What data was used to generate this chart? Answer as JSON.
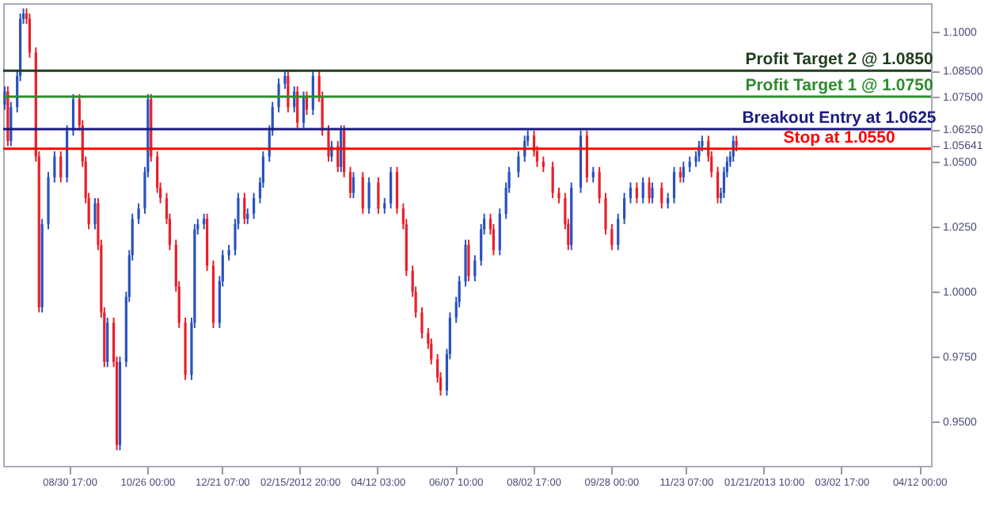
{
  "chart_data": {
    "type": "candlestick",
    "ylim": [
      0.933,
      1.111
    ],
    "categories": [
      null,
      null,
      null,
      null,
      null,
      null,
      null,
      null,
      null,
      null,
      null,
      null,
      null,
      null,
      null,
      null,
      null,
      null,
      null,
      null,
      null,
      "08/30 17:00",
      null,
      null,
      null,
      null,
      null,
      null,
      null,
      null,
      null,
      null,
      null,
      null,
      null,
      null,
      null,
      null,
      null,
      null,
      null,
      null,
      null,
      null,
      null,
      null,
      "10/26 00:00",
      null,
      null,
      null,
      null,
      null,
      null,
      null,
      null,
      null,
      null,
      null,
      null,
      null,
      null,
      null,
      null,
      null,
      null,
      null,
      null,
      null,
      null,
      null,
      "12/21 07:00",
      null,
      null,
      null,
      null,
      null,
      null,
      null,
      null,
      null,
      null,
      null,
      null,
      null,
      null,
      null,
      null,
      null,
      null,
      null,
      null,
      null,
      null,
      null,
      null,
      "02/15/2012 20:00",
      null,
      null,
      null,
      null,
      null,
      null,
      null,
      null,
      null,
      null,
      null,
      null,
      null,
      null,
      null,
      null,
      null,
      null,
      null,
      null,
      null,
      null,
      null,
      null,
      "04/12 03:00",
      null,
      null,
      null,
      null,
      null,
      null,
      null,
      null,
      null,
      null,
      null,
      null,
      null,
      null,
      null,
      null,
      null,
      null,
      null,
      null,
      null,
      null,
      null,
      null,
      "06/07 10:00",
      null,
      null,
      null,
      null,
      null,
      null,
      null,
      null,
      null,
      null,
      null,
      null,
      null,
      null,
      null,
      null,
      null,
      null,
      null,
      null,
      null,
      null,
      null,
      null,
      "08/02 17:00",
      null,
      null,
      null,
      null,
      null,
      null,
      null,
      null,
      null,
      null,
      null,
      null,
      null,
      null,
      null,
      null,
      null,
      null,
      null,
      null,
      null,
      null,
      null,
      null,
      "09/28 00:00",
      null,
      null,
      null,
      null,
      null,
      null,
      null,
      null,
      null,
      null,
      null,
      null,
      null,
      null,
      null,
      null,
      null,
      null,
      null,
      null,
      null,
      null,
      null,
      "11/23 07:00",
      null,
      null,
      null,
      null,
      null,
      null,
      null,
      null,
      null,
      null,
      null,
      null,
      null,
      null,
      null,
      null,
      null,
      null,
      null,
      null,
      null,
      null,
      null,
      null,
      "01/21/2013 10:00",
      null,
      null,
      null,
      null,
      null,
      null,
      null,
      null,
      null,
      null,
      null,
      null,
      null,
      null,
      null,
      null,
      null,
      null,
      null,
      null,
      null,
      null,
      null,
      null,
      "03/02 17:00",
      null,
      null,
      null,
      null,
      null,
      null,
      null,
      null,
      null,
      null,
      null,
      null,
      null,
      null,
      null,
      null,
      null,
      null,
      null,
      null,
      null,
      null,
      null,
      null,
      "04/12 00:00",
      null,
      null,
      null
    ],
    "yticks": [
      {
        "value": 0.95,
        "label": "0.9500"
      },
      {
        "value": 0.975,
        "label": "0.9750"
      },
      {
        "value": 1.0,
        "label": "1.0000"
      },
      {
        "value": 1.025,
        "label": "1.0250"
      },
      {
        "value": 1.05,
        "label": "1.0500"
      },
      {
        "value": 1.05641,
        "label": "1.05641"
      },
      {
        "value": 1.0625,
        "label": "1.06250"
      },
      {
        "value": 1.075,
        "label": "1.07500"
      },
      {
        "value": 1.085,
        "label": "1.08500"
      },
      {
        "value": 1.1,
        "label": "1.1000"
      }
    ],
    "grid": false,
    "series": [
      {
        "color": "#2a52be",
        "ohlc": [
          [
            1.072,
            1.079,
            1.07,
            1.077
          ],
          null,
          [
            1.058,
            1.073,
            1.056,
            1.071
          ],
          null,
          [
            1.071,
            1.085,
            1.069,
            1.083
          ],
          [
            1.083,
            1.107,
            1.081,
            1.105
          ],
          [
            1.105,
            1.109,
            1.103,
            1.107
          ],
          null,
          null,
          null,
          null,
          null,
          [
            0.994,
            1.028,
            0.992,
            1.026
          ],
          null,
          [
            1.026,
            1.046,
            1.024,
            1.044
          ],
          null,
          [
            1.044,
            1.054,
            1.042,
            1.052
          ],
          null,
          null,
          null,
          [
            1.044,
            1.064,
            1.042,
            1.062
          ],
          null,
          [
            1.062,
            1.076,
            1.06,
            1.074
          ],
          null,
          null,
          null,
          null,
          null,
          null,
          [
            1.026,
            1.036,
            1.024,
            1.034
          ],
          null,
          null,
          null,
          [
            0.973,
            0.99,
            0.971,
            0.988
          ],
          null,
          null,
          null,
          [
            0.941,
            0.975,
            0.939,
            0.973
          ],
          null,
          [
            0.973,
            1.0,
            0.971,
            0.998
          ],
          [
            0.998,
            1.016,
            0.996,
            1.014
          ],
          [
            1.014,
            1.03,
            1.012,
            1.028
          ],
          null,
          [
            1.028,
            1.034,
            1.026,
            1.032
          ],
          null,
          [
            1.032,
            1.048,
            1.03,
            1.046
          ],
          [
            1.046,
            1.076,
            1.044,
            1.074
          ],
          null,
          null,
          null,
          null,
          null,
          null,
          null,
          null,
          null,
          null,
          null,
          null,
          null,
          [
            0.968,
            0.99,
            0.966,
            0.988
          ],
          [
            0.988,
            1.026,
            0.986,
            1.024
          ],
          [
            1.024,
            1.028,
            1.022,
            1.026
          ],
          null,
          [
            1.026,
            1.03,
            1.024,
            1.028
          ],
          null,
          null,
          null,
          null,
          [
            0.988,
            1.006,
            0.986,
            1.004
          ],
          [
            1.004,
            1.016,
            1.002,
            1.014
          ],
          null,
          [
            1.014,
            1.018,
            1.012,
            1.016
          ],
          null,
          [
            1.016,
            1.028,
            1.014,
            1.026
          ],
          [
            1.026,
            1.038,
            1.024,
            1.036
          ],
          null,
          null,
          [
            1.028,
            1.032,
            1.026,
            1.03
          ],
          null,
          [
            1.03,
            1.038,
            1.028,
            1.036
          ],
          null,
          [
            1.036,
            1.044,
            1.034,
            1.042
          ],
          [
            1.042,
            1.054,
            1.04,
            1.052
          ],
          null,
          [
            1.052,
            1.064,
            1.05,
            1.062
          ],
          [
            1.062,
            1.073,
            1.06,
            1.071
          ],
          null,
          [
            1.071,
            1.082,
            1.069,
            1.08
          ],
          null,
          [
            1.08,
            1.085,
            1.078,
            1.083
          ],
          null,
          null,
          [
            1.071,
            1.079,
            1.069,
            1.077
          ],
          null,
          null,
          [
            1.065,
            1.077,
            1.063,
            1.075
          ],
          null,
          null,
          [
            1.07,
            1.085,
            1.068,
            1.083
          ],
          null,
          null,
          null,
          null,
          null,
          [
            1.052,
            1.058,
            1.05,
            1.056
          ],
          null,
          null,
          [
            1.048,
            1.064,
            1.046,
            1.062
          ],
          null,
          null,
          null,
          [
            1.038,
            1.046,
            1.036,
            1.044
          ],
          null,
          null,
          null,
          null,
          [
            1.032,
            1.044,
            1.03,
            1.042
          ],
          null,
          null,
          null,
          null,
          [
            1.032,
            1.036,
            1.03,
            1.034
          ],
          null,
          [
            1.034,
            1.048,
            1.032,
            1.046
          ],
          null,
          null,
          null,
          null,
          null,
          null,
          null,
          null,
          null,
          null,
          null,
          null,
          null,
          null,
          null,
          null,
          null,
          [
            0.962,
            0.978,
            0.96,
            0.976
          ],
          [
            0.976,
            0.992,
            0.974,
            0.99
          ],
          null,
          [
            0.99,
            0.998,
            0.988,
            0.996
          ],
          [
            0.996,
            1.006,
            0.994,
            1.004
          ],
          null,
          [
            1.004,
            1.02,
            1.002,
            1.018
          ],
          null,
          null,
          [
            1.006,
            1.014,
            1.004,
            1.012
          ],
          null,
          [
            1.012,
            1.026,
            1.01,
            1.024
          ],
          [
            1.024,
            1.03,
            1.022,
            1.028
          ],
          null,
          null,
          null,
          null,
          [
            1.016,
            1.032,
            1.014,
            1.03
          ],
          null,
          [
            1.03,
            1.042,
            1.028,
            1.04
          ],
          [
            1.04,
            1.048,
            1.038,
            1.046
          ],
          null,
          null,
          [
            1.046,
            1.054,
            1.044,
            1.052
          ],
          null,
          [
            1.052,
            1.06,
            1.05,
            1.058
          ],
          [
            1.058,
            1.062,
            1.056,
            1.06
          ],
          null,
          null,
          null,
          null,
          null,
          null,
          null,
          null,
          null,
          null,
          null,
          null,
          null,
          [
            1.018,
            1.042,
            1.016,
            1.04
          ],
          null,
          null,
          [
            1.04,
            1.062,
            1.038,
            1.06
          ],
          null,
          null,
          null,
          [
            1.044,
            1.048,
            1.042,
            1.046
          ],
          null,
          null,
          null,
          null,
          null,
          null,
          null,
          [
            1.018,
            1.03,
            1.016,
            1.028
          ],
          null,
          [
            1.028,
            1.038,
            1.026,
            1.036
          ],
          null,
          [
            1.036,
            1.042,
            1.034,
            1.04
          ],
          null,
          null,
          null,
          [
            1.036,
            1.044,
            1.034,
            1.042
          ],
          null,
          null,
          [
            1.036,
            1.042,
            1.034,
            1.04
          ],
          null,
          null,
          null,
          null,
          [
            1.034,
            1.038,
            1.032,
            1.036
          ],
          null,
          [
            1.036,
            1.048,
            1.034,
            1.046
          ],
          null,
          null,
          [
            1.044,
            1.05,
            1.042,
            1.048
          ],
          null,
          [
            1.048,
            1.052,
            1.046,
            1.05
          ],
          null,
          [
            1.05,
            1.054,
            1.048,
            1.052
          ],
          [
            1.052,
            1.058,
            1.05,
            1.056
          ],
          [
            1.056,
            1.06,
            1.054,
            1.058
          ],
          null,
          null,
          null,
          null,
          null,
          [
            1.036,
            1.04,
            1.034,
            1.038
          ],
          [
            1.038,
            1.048,
            1.036,
            1.046
          ],
          [
            1.046,
            1.052,
            1.044,
            1.05
          ],
          [
            1.05,
            1.054,
            1.048,
            1.052
          ],
          [
            1.052,
            1.06,
            1.05,
            1.058
          ],
          null,
          null,
          null,
          null,
          null,
          null,
          null,
          null,
          null,
          null,
          null,
          null,
          null,
          null,
          null,
          null,
          null,
          null,
          null,
          null,
          null,
          null,
          null,
          null,
          null,
          null,
          null,
          null,
          null,
          null,
          null,
          null,
          null,
          null,
          null,
          null,
          null,
          null,
          null,
          null,
          null,
          null,
          null,
          null,
          null,
          null,
          null,
          null,
          null,
          null,
          null,
          null,
          null,
          null,
          null,
          null,
          null,
          null,
          null,
          null,
          null,
          null,
          null
        ]
      },
      {
        "color": "#e8202a",
        "ohlc": [
          null,
          [
            1.077,
            1.079,
            1.056,
            1.058
          ],
          null,
          null,
          null,
          null,
          null,
          [
            1.107,
            1.109,
            1.103,
            1.105
          ],
          [
            1.105,
            1.107,
            1.09,
            1.092
          ],
          null,
          [
            1.092,
            1.094,
            1.05,
            1.052
          ],
          [
            1.052,
            1.054,
            0.992,
            0.994
          ],
          null,
          null,
          null,
          null,
          null,
          null,
          [
            1.052,
            1.054,
            1.042,
            1.044
          ],
          null,
          null,
          null,
          null,
          null,
          [
            1.074,
            1.076,
            1.062,
            1.064
          ],
          [
            1.064,
            1.066,
            1.048,
            1.05
          ],
          [
            1.05,
            1.052,
            1.034,
            1.036
          ],
          [
            1.036,
            1.038,
            1.024,
            1.026
          ],
          null,
          null,
          [
            1.034,
            1.036,
            1.016,
            1.018
          ],
          [
            1.018,
            1.02,
            0.99,
            0.992
          ],
          [
            0.992,
            0.994,
            0.971,
            0.973
          ],
          null,
          null,
          [
            0.988,
            0.99,
            0.971,
            0.973
          ],
          [
            0.973,
            0.975,
            0.939,
            0.941
          ],
          null,
          null,
          null,
          null,
          null,
          null,
          null,
          null,
          null,
          null,
          [
            1.074,
            1.076,
            1.05,
            1.052
          ],
          null,
          [
            1.052,
            1.054,
            1.038,
            1.04
          ],
          [
            1.04,
            1.042,
            1.034,
            1.036
          ],
          null,
          [
            1.036,
            1.038,
            1.026,
            1.028
          ],
          [
            1.028,
            1.03,
            1.016,
            1.018
          ],
          null,
          [
            1.018,
            1.02,
            1.0,
            1.002
          ],
          [
            1.002,
            1.004,
            0.986,
            0.988
          ],
          null,
          [
            0.988,
            0.99,
            0.966,
            0.968
          ],
          null,
          null,
          null,
          null,
          null,
          null,
          [
            1.028,
            1.03,
            1.008,
            1.01
          ],
          null,
          [
            1.01,
            1.012,
            0.986,
            0.988
          ],
          null,
          null,
          null,
          null,
          null,
          null,
          null,
          null,
          null,
          [
            1.036,
            1.038,
            1.026,
            1.028
          ],
          null,
          null,
          null,
          null,
          null,
          null,
          null,
          null,
          null,
          null,
          null,
          null,
          null,
          [
            1.083,
            1.085,
            1.069,
            1.071
          ],
          null,
          null,
          [
            1.077,
            1.079,
            1.063,
            1.065
          ],
          null,
          null,
          [
            1.075,
            1.077,
            1.068,
            1.07
          ],
          null,
          null,
          null,
          [
            1.083,
            1.085,
            1.073,
            1.075
          ],
          [
            1.075,
            1.077,
            1.06,
            1.062
          ],
          null,
          [
            1.062,
            1.064,
            1.05,
            1.052
          ],
          null,
          null,
          [
            1.056,
            1.058,
            1.046,
            1.048
          ],
          null,
          [
            1.062,
            1.064,
            1.044,
            1.046
          ],
          null,
          [
            1.046,
            1.048,
            1.036,
            1.038
          ],
          null,
          null,
          null,
          [
            1.044,
            1.046,
            1.03,
            1.032
          ],
          null,
          null,
          null,
          null,
          [
            1.042,
            1.044,
            1.03,
            1.032
          ],
          null,
          null,
          null,
          null,
          null,
          [
            1.046,
            1.048,
            1.03,
            1.032
          ],
          null,
          [
            1.032,
            1.034,
            1.024,
            1.026
          ],
          [
            1.026,
            1.028,
            1.006,
            1.008
          ],
          null,
          [
            1.008,
            1.01,
            0.998,
            1.0
          ],
          [
            1.0,
            1.002,
            0.99,
            0.992
          ],
          null,
          [
            0.992,
            0.994,
            0.982,
            0.984
          ],
          null,
          [
            0.984,
            0.986,
            0.978,
            0.98
          ],
          [
            0.98,
            0.982,
            0.972,
            0.974
          ],
          null,
          [
            0.974,
            0.976,
            0.965,
            0.967
          ],
          [
            0.967,
            0.969,
            0.96,
            0.962
          ],
          null,
          null,
          null,
          null,
          null,
          null,
          null,
          null,
          [
            1.018,
            1.02,
            1.004,
            1.006
          ],
          null,
          null,
          null,
          null,
          null,
          null,
          [
            1.028,
            1.03,
            1.022,
            1.024
          ],
          [
            1.024,
            1.026,
            1.014,
            1.016
          ],
          null,
          null,
          null,
          null,
          null,
          null,
          null,
          null,
          null,
          null,
          null,
          null,
          [
            1.06,
            1.062,
            1.052,
            1.054
          ],
          [
            1.054,
            1.056,
            1.048,
            1.05
          ],
          null,
          [
            1.05,
            1.052,
            1.046,
            1.048
          ],
          null,
          null,
          [
            1.048,
            1.05,
            1.036,
            1.038
          ],
          null,
          [
            1.038,
            1.04,
            1.034,
            1.036
          ],
          null,
          [
            1.036,
            1.038,
            1.024,
            1.026
          ],
          [
            1.026,
            1.028,
            1.016,
            1.018
          ],
          null,
          null,
          null,
          null,
          null,
          [
            1.06,
            1.062,
            1.042,
            1.044
          ],
          null,
          null,
          null,
          [
            1.046,
            1.048,
            1.034,
            1.036
          ],
          null,
          [
            1.036,
            1.038,
            1.022,
            1.024
          ],
          null,
          [
            1.024,
            1.026,
            1.016,
            1.018
          ],
          null,
          null,
          null,
          null,
          null,
          null,
          null,
          [
            1.04,
            1.042,
            1.034,
            1.036
          ],
          null,
          null,
          null,
          [
            1.042,
            1.044,
            1.034,
            1.036
          ],
          null,
          null,
          null,
          [
            1.04,
            1.042,
            1.032,
            1.034
          ],
          null,
          null,
          null,
          null,
          null,
          [
            1.046,
            1.048,
            1.042,
            1.044
          ],
          null,
          null,
          null,
          null,
          null,
          null,
          null,
          null,
          [
            1.058,
            1.06,
            1.05,
            1.052
          ],
          [
            1.052,
            1.054,
            1.044,
            1.046
          ],
          null,
          [
            1.046,
            1.048,
            1.034,
            1.036
          ],
          null,
          null,
          null,
          null,
          null,
          [
            1.058,
            1.06,
            1.054,
            1.056
          ],
          null,
          null,
          null,
          null,
          null,
          null,
          null,
          null,
          null,
          null,
          null,
          null,
          null,
          null,
          null,
          null,
          null,
          null,
          null,
          null,
          null,
          null,
          null,
          null,
          null,
          null,
          null,
          null,
          null,
          null,
          null,
          null,
          null,
          null,
          null,
          null,
          null,
          null,
          null,
          null,
          null,
          null,
          null,
          null,
          null,
          null,
          null,
          null,
          null,
          null,
          null,
          null,
          null,
          null,
          null,
          null,
          null,
          null,
          null,
          null,
          null,
          null
        ]
      }
    ],
    "ref_lines": [
      {
        "axis": "y",
        "value": 1.085,
        "label": "Profit Target 2 @ 1.0850",
        "color": "#1e3d1e"
      },
      {
        "axis": "y",
        "value": 1.075,
        "label": "Profit Target 1 @ 1.0750",
        "color": "#2e8b2e"
      },
      {
        "axis": "y",
        "value": 1.0625,
        "label": "Breakout Entry at 1.0625",
        "color": "#1a1a80"
      },
      {
        "axis": "y",
        "value": 1.055,
        "label": "Stop at 1.0550",
        "color": "#ff0000"
      }
    ]
  }
}
